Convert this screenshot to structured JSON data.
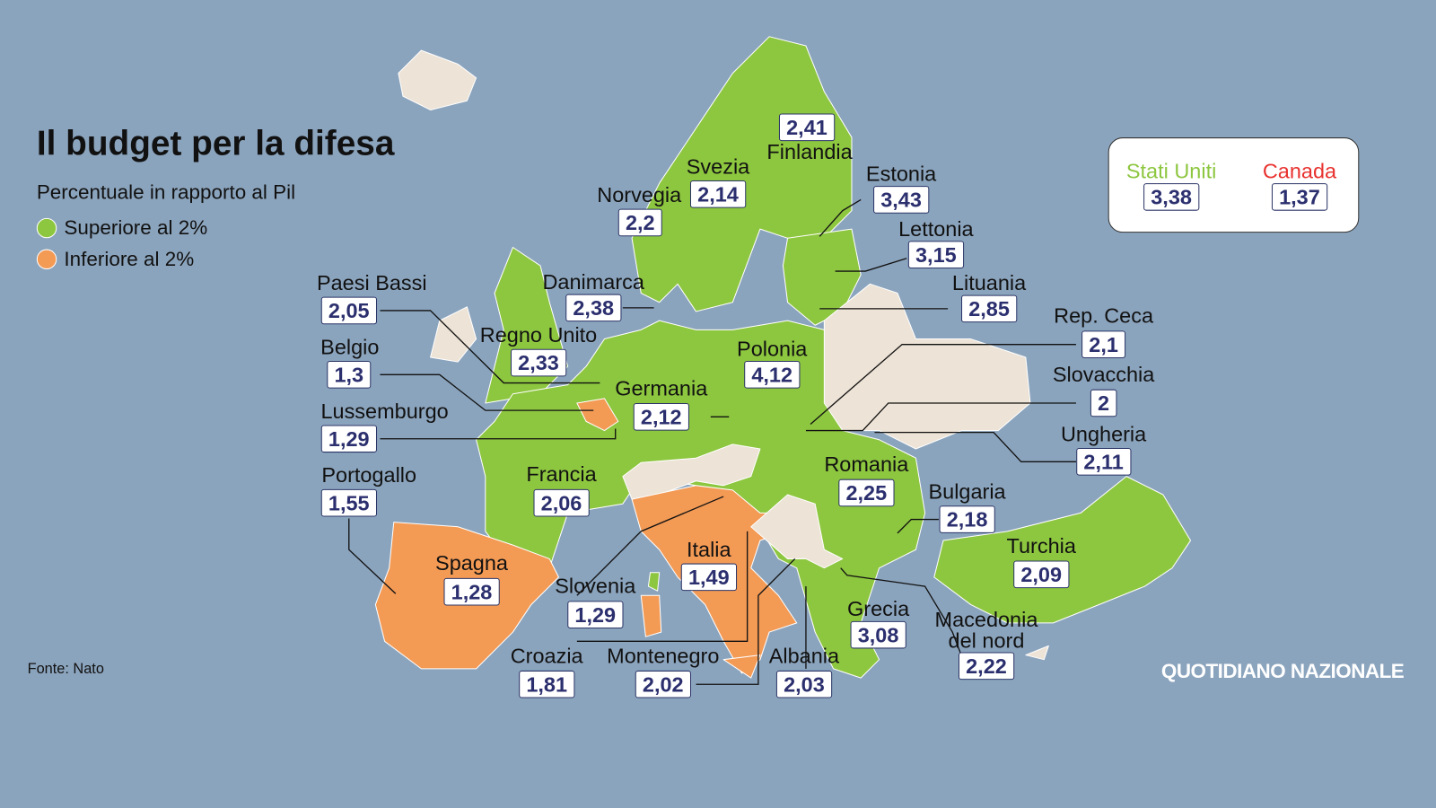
{
  "title": "Il budget per la difesa",
  "subtitle": "Percentuale in rapporto al Pil",
  "legend": [
    {
      "label": "Superiore al 2%",
      "color": "#8dc63f"
    },
    {
      "label": "Inferiore al 2%",
      "color": "#f39a55"
    }
  ],
  "countries": [
    {
      "name": "Finlandia",
      "value": "2,41"
    },
    {
      "name": "Svezia",
      "value": "2,14"
    },
    {
      "name": "Norvegia",
      "value": "2,2"
    },
    {
      "name": "Estonia",
      "value": "3,43"
    },
    {
      "name": "Lettonia",
      "value": "3,15"
    },
    {
      "name": "Lituania",
      "value": "2,85"
    },
    {
      "name": "Danimarca",
      "value": "2,38"
    },
    {
      "name": "Paesi Bassi",
      "value": "2,05"
    },
    {
      "name": "Regno Unito",
      "value": "2,33"
    },
    {
      "name": "Polonia",
      "value": "4,12"
    },
    {
      "name": "Rep. Ceca",
      "value": "2,1"
    },
    {
      "name": "Belgio",
      "value": "1,3"
    },
    {
      "name": "Germania",
      "value": "2,12"
    },
    {
      "name": "Slovacchia",
      "value": "2"
    },
    {
      "name": "Lussemburgo",
      "value": "1,29"
    },
    {
      "name": "Ungheria",
      "value": "2,11"
    },
    {
      "name": "Romania",
      "value": "2,25"
    },
    {
      "name": "Portogallo",
      "value": "1,55"
    },
    {
      "name": "Francia",
      "value": "2,06"
    },
    {
      "name": "Bulgaria",
      "value": "2,18"
    },
    {
      "name": "Turchia",
      "value": "2,09"
    },
    {
      "name": "Italia",
      "value": "1,49"
    },
    {
      "name": "Spagna",
      "value": "1,28"
    },
    {
      "name": "Slovenia",
      "value": "1,29"
    },
    {
      "name": "Grecia",
      "value": "3,08"
    },
    {
      "name": "Macedonia del nord",
      "value": "2,22"
    },
    {
      "name": "Croazia",
      "value": "1,81"
    },
    {
      "name": "Montenegro",
      "value": "2,02"
    },
    {
      "name": "Albania",
      "value": "2,03"
    }
  ],
  "inset": [
    {
      "name": "Stati Uniti",
      "value": "3,38",
      "color": "#8dc63f"
    },
    {
      "name": "Canada",
      "value": "1,37",
      "color": "#e8322e"
    }
  ],
  "source": "Fonte: Nato",
  "brand": "QUOTIDIANO NAZIONALE"
}
